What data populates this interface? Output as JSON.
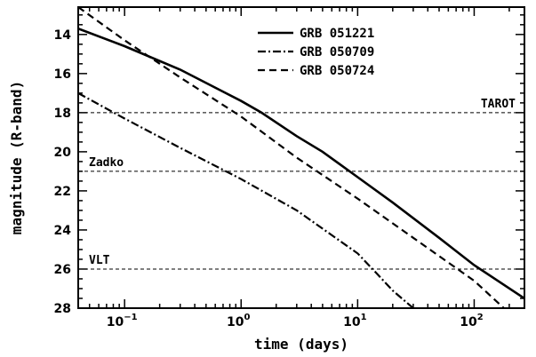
{
  "chart_data": {
    "type": "line",
    "xlabel": "time (days)",
    "ylabel": "magnitude (R-band)",
    "xscale": "log",
    "xlim": [
      0.04,
      270
    ],
    "ylim": [
      28,
      12.6
    ],
    "y_inverted": true,
    "x_ticks": [
      {
        "value": 0.1,
        "base": "10",
        "exp": "−1"
      },
      {
        "value": 1,
        "base": "10",
        "exp": "0"
      },
      {
        "value": 10,
        "base": "10",
        "exp": "1"
      },
      {
        "value": 100,
        "base": "10",
        "exp": "2"
      }
    ],
    "y_ticks": [
      14,
      16,
      18,
      20,
      22,
      24,
      26,
      28
    ],
    "grid": false,
    "legend_position": "top-right",
    "series": [
      {
        "name": "GRB 051221",
        "style": "solid",
        "x": [
          0.04,
          0.1,
          0.3,
          1,
          1.5,
          3,
          5,
          10,
          20,
          50,
          100,
          270
        ],
        "y": [
          13.7,
          14.6,
          15.8,
          17.4,
          18.0,
          19.2,
          20.0,
          21.3,
          22.6,
          24.4,
          25.8,
          27.5
        ]
      },
      {
        "name": "GRB 050709",
        "style": "dash-dot",
        "x": [
          0.04,
          0.1,
          0.3,
          1,
          3,
          10,
          15,
          20,
          30
        ],
        "y": [
          17.0,
          18.3,
          19.8,
          21.4,
          23.0,
          25.2,
          26.3,
          27.1,
          28.0
        ]
      },
      {
        "name": "GRB 050724",
        "style": "dashed",
        "x": [
          0.04,
          0.1,
          0.3,
          1,
          3,
          10,
          30,
          100,
          180
        ],
        "y": [
          12.6,
          14.3,
          16.2,
          18.2,
          20.3,
          22.4,
          24.4,
          26.6,
          28.0
        ]
      }
    ],
    "reference_lines": [
      {
        "label": "TAROT",
        "y": 18,
        "label_position": "right"
      },
      {
        "label": "Zadko",
        "y": 21,
        "label_position": "left"
      },
      {
        "label": "VLT",
        "y": 26,
        "label_position": "left"
      }
    ]
  }
}
